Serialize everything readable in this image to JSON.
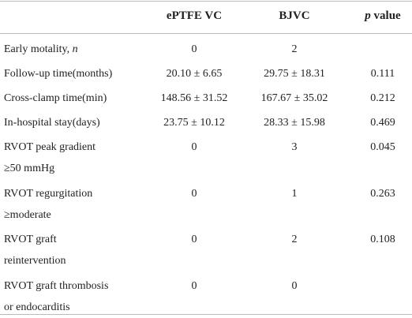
{
  "header": {
    "col1": "ePTFE VC",
    "col2": "BJVC",
    "p_symbol": "p",
    "p_rest": "value"
  },
  "rows": [
    {
      "label": [
        "Early motality,"
      ],
      "label_italic": "n",
      "col1": "0",
      "col2": "2"
    },
    {
      "label": [
        "Follow-up time(months)"
      ],
      "col1": "20.10 ± 6.65",
      "col2": "29.75 ± 18.31",
      "p": "0.111"
    },
    {
      "label": [
        "Cross-clamp time(min)"
      ],
      "col1": "148.56 ± 31.52",
      "col2": "167.67 ± 35.02",
      "p": "0.212"
    },
    {
      "label": [
        "In-hospital stay(days)"
      ],
      "col1": "23.75 ± 10.12",
      "col2": "28.33 ± 15.98",
      "p": "0.469"
    },
    {
      "label": [
        "RVOT peak gradient",
        "≥50 mmHg"
      ],
      "col1": "0",
      "col2": "3",
      "p": "0.045"
    },
    {
      "label": [
        "RVOT regurgitation",
        "≥moderate"
      ],
      "col1": "0",
      "col2": "1",
      "p": "0.263"
    },
    {
      "label": [
        "RVOT graft",
        "reintervention"
      ],
      "col1": "0",
      "col2": "2",
      "p": "0.108"
    },
    {
      "label": [
        "RVOT graft thrombosis",
        "or endocarditis"
      ],
      "col1": "0",
      "col2": "0"
    }
  ]
}
